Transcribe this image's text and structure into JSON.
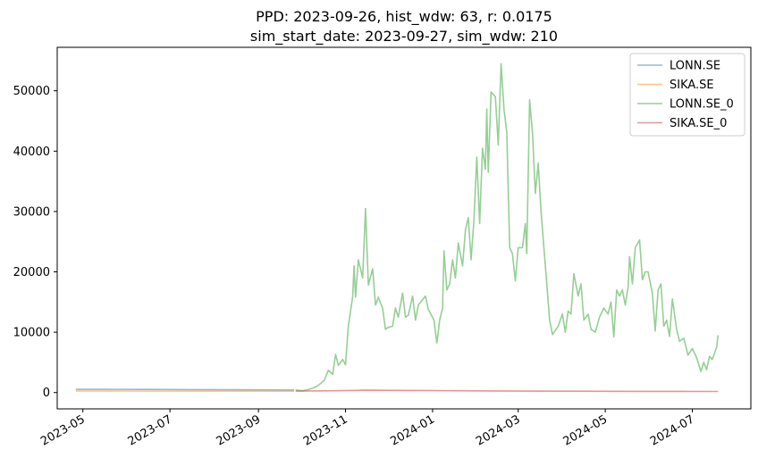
{
  "chart_data": {
    "type": "line",
    "title_line1": "PPD: 2023-09-26, hist_wdw: 63, r: 0.0175",
    "title_line2": "sim_start_date: 2023-09-27, sim_wdw: 210",
    "xlabel": "",
    "ylabel": "",
    "x_ticks": [
      "2023-05",
      "2023-07",
      "2023-09",
      "2023-11",
      "2024-01",
      "2024-03",
      "2024-05",
      "2024-07"
    ],
    "y_ticks": [
      0,
      10000,
      20000,
      30000,
      40000,
      50000
    ],
    "xlim": [
      "2023-04-13",
      "2024-08-11"
    ],
    "ylim": [
      -2700,
      57200
    ],
    "grid": false,
    "legend_position": "top-right",
    "series": [
      {
        "name": "LONN.SE",
        "color": "#1f77b4",
        "points": [
          [
            "2023-04-26",
            540
          ],
          [
            "2023-05-15",
            540
          ],
          [
            "2023-06-15",
            520
          ],
          [
            "2023-07-15",
            500
          ],
          [
            "2023-08-15",
            460
          ],
          [
            "2023-09-15",
            430
          ],
          [
            "2023-09-26",
            420
          ]
        ]
      },
      {
        "name": "SIKA.SE",
        "color": "#ff7f0e",
        "points": [
          [
            "2023-04-26",
            270
          ],
          [
            "2023-06-01",
            260
          ],
          [
            "2023-07-15",
            250
          ],
          [
            "2023-08-15",
            240
          ],
          [
            "2023-09-26",
            230
          ]
        ]
      },
      {
        "name": "LONN.SE_0",
        "color": "#2ca02c",
        "points": [
          [
            "2023-09-27",
            420
          ],
          [
            "2023-10-02",
            300
          ],
          [
            "2023-10-06",
            500
          ],
          [
            "2023-10-10",
            800
          ],
          [
            "2023-10-13",
            1200
          ],
          [
            "2023-10-17",
            2000
          ],
          [
            "2023-10-20",
            3700
          ],
          [
            "2023-10-23",
            3000
          ],
          [
            "2023-10-25",
            6300
          ],
          [
            "2023-10-27",
            4500
          ],
          [
            "2023-10-30",
            5500
          ],
          [
            "2023-11-01",
            4600
          ],
          [
            "2023-11-03",
            11000
          ],
          [
            "2023-11-06",
            15800
          ],
          [
            "2023-11-07",
            21000
          ],
          [
            "2023-11-08",
            15800
          ],
          [
            "2023-11-10",
            22000
          ],
          [
            "2023-11-13",
            19000
          ],
          [
            "2023-11-15",
            30500
          ],
          [
            "2023-11-17",
            17800
          ],
          [
            "2023-11-20",
            20500
          ],
          [
            "2023-11-22",
            14500
          ],
          [
            "2023-11-24",
            15800
          ],
          [
            "2023-11-27",
            14000
          ],
          [
            "2023-11-29",
            10500
          ],
          [
            "2023-12-01",
            10800
          ],
          [
            "2023-12-04",
            11000
          ],
          [
            "2023-12-06",
            14000
          ],
          [
            "2023-12-08",
            12500
          ],
          [
            "2023-12-11",
            16500
          ],
          [
            "2023-12-13",
            12500
          ],
          [
            "2023-12-15",
            12800
          ],
          [
            "2023-12-18",
            16000
          ],
          [
            "2023-12-20",
            12000
          ],
          [
            "2023-12-22",
            14500
          ],
          [
            "2023-12-27",
            16000
          ],
          [
            "2023-12-29",
            13800
          ],
          [
            "2024-01-02",
            12000
          ],
          [
            "2024-01-04",
            8200
          ],
          [
            "2024-01-06",
            12000
          ],
          [
            "2024-01-08",
            14000
          ],
          [
            "2024-01-09",
            23500
          ],
          [
            "2024-01-11",
            17000
          ],
          [
            "2024-01-13",
            18000
          ],
          [
            "2024-01-15",
            22000
          ],
          [
            "2024-01-17",
            19000
          ],
          [
            "2024-01-19",
            24800
          ],
          [
            "2024-01-22",
            21000
          ],
          [
            "2024-01-24",
            27000
          ],
          [
            "2024-01-26",
            29000
          ],
          [
            "2024-01-28",
            22000
          ],
          [
            "2024-01-30",
            28500
          ],
          [
            "2024-02-01",
            39000
          ],
          [
            "2024-02-03",
            28000
          ],
          [
            "2024-02-05",
            40500
          ],
          [
            "2024-02-07",
            37000
          ],
          [
            "2024-02-08",
            47000
          ],
          [
            "2024-02-09",
            36500
          ],
          [
            "2024-02-11",
            49800
          ],
          [
            "2024-02-14",
            49000
          ],
          [
            "2024-02-16",
            41000
          ],
          [
            "2024-02-18",
            54500
          ],
          [
            "2024-02-20",
            47000
          ],
          [
            "2024-02-22",
            43000
          ],
          [
            "2024-02-24",
            24000
          ],
          [
            "2024-02-26",
            23000
          ],
          [
            "2024-02-28",
            18500
          ],
          [
            "2024-03-01",
            24000
          ],
          [
            "2024-03-04",
            24000
          ],
          [
            "2024-03-06",
            28000
          ],
          [
            "2024-03-07",
            23000
          ],
          [
            "2024-03-09",
            48500
          ],
          [
            "2024-03-11",
            43000
          ],
          [
            "2024-03-13",
            33000
          ],
          [
            "2024-03-15",
            38000
          ],
          [
            "2024-03-17",
            30000
          ],
          [
            "2024-03-20",
            21000
          ],
          [
            "2024-03-23",
            12000
          ],
          [
            "2024-03-25",
            9600
          ],
          [
            "2024-03-29",
            11000
          ],
          [
            "2024-04-01",
            13000
          ],
          [
            "2024-04-03",
            10000
          ],
          [
            "2024-04-05",
            13500
          ],
          [
            "2024-04-07",
            13000
          ],
          [
            "2024-04-09",
            19700
          ],
          [
            "2024-04-12",
            16000
          ],
          [
            "2024-04-14",
            18000
          ],
          [
            "2024-04-16",
            12000
          ],
          [
            "2024-04-19",
            13000
          ],
          [
            "2024-04-21",
            10500
          ],
          [
            "2024-04-24",
            10000
          ],
          [
            "2024-04-27",
            12500
          ],
          [
            "2024-04-30",
            14000
          ],
          [
            "2024-05-03",
            13000
          ],
          [
            "2024-05-05",
            15000
          ],
          [
            "2024-05-07",
            9200
          ],
          [
            "2024-05-09",
            17000
          ],
          [
            "2024-05-11",
            16000
          ],
          [
            "2024-05-13",
            17000
          ],
          [
            "2024-05-15",
            14500
          ],
          [
            "2024-05-17",
            17500
          ],
          [
            "2024-05-18",
            22500
          ],
          [
            "2024-05-20",
            18000
          ],
          [
            "2024-05-22",
            24000
          ],
          [
            "2024-05-25",
            25300
          ],
          [
            "2024-05-27",
            18700
          ],
          [
            "2024-05-29",
            20000
          ],
          [
            "2024-05-31",
            20000
          ],
          [
            "2024-06-03",
            16500
          ],
          [
            "2024-06-05",
            10200
          ],
          [
            "2024-06-07",
            17000
          ],
          [
            "2024-06-09",
            18000
          ],
          [
            "2024-06-11",
            11000
          ],
          [
            "2024-06-13",
            12000
          ],
          [
            "2024-06-15",
            9300
          ],
          [
            "2024-06-17",
            15500
          ],
          [
            "2024-06-20",
            10500
          ],
          [
            "2024-06-22",
            8500
          ],
          [
            "2024-06-25",
            9000
          ],
          [
            "2024-06-28",
            6200
          ],
          [
            "2024-07-01",
            7300
          ],
          [
            "2024-07-04",
            5800
          ],
          [
            "2024-07-07",
            3500
          ],
          [
            "2024-07-09",
            5000
          ],
          [
            "2024-07-11",
            3800
          ],
          [
            "2024-07-13",
            6000
          ],
          [
            "2024-07-15",
            5500
          ],
          [
            "2024-07-18",
            7500
          ],
          [
            "2024-07-19",
            9500
          ]
        ]
      },
      {
        "name": "SIKA.SE_0",
        "color": "#d62728",
        "points": [
          [
            "2023-09-27",
            230
          ],
          [
            "2023-10-05",
            260
          ],
          [
            "2023-10-15",
            290
          ],
          [
            "2023-10-25",
            300
          ],
          [
            "2023-11-05",
            350
          ],
          [
            "2023-11-15",
            390
          ],
          [
            "2023-11-25",
            380
          ],
          [
            "2023-12-10",
            360
          ],
          [
            "2024-01-01",
            330
          ],
          [
            "2024-01-20",
            300
          ],
          [
            "2024-02-10",
            270
          ],
          [
            "2024-03-05",
            250
          ],
          [
            "2024-04-01",
            230
          ],
          [
            "2024-05-01",
            210
          ],
          [
            "2024-06-01",
            200
          ],
          [
            "2024-07-01",
            190
          ],
          [
            "2024-07-19",
            180
          ]
        ]
      }
    ]
  }
}
